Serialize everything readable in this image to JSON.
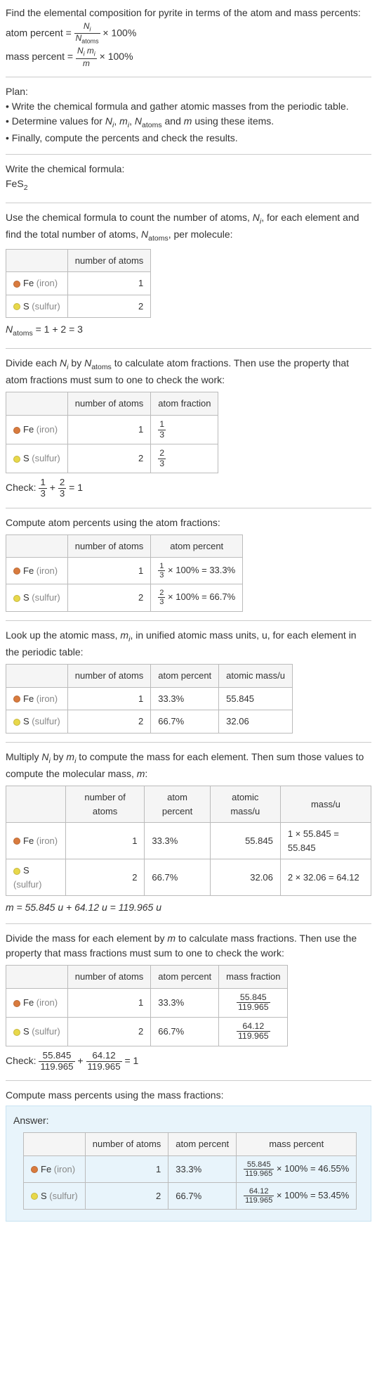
{
  "intro": {
    "line1": "Find the elemental composition for pyrite in terms of the atom and mass percents:",
    "atom_label": "atom percent = ",
    "atom_num": "N_i",
    "atom_den": "N_atoms",
    "mass_label": "mass percent = ",
    "mass_num": "N_i m_i",
    "mass_den": "m",
    "times100": " × 100%"
  },
  "plan": {
    "title": "Plan:",
    "b1": "• Write the chemical formula and gather atomic masses from the periodic table.",
    "b2_a": "• Determine values for ",
    "b2_b": " using these items.",
    "b3": "• Finally, compute the percents and check the results.",
    "vars": "N_i, m_i, N_atoms and m"
  },
  "step_formula": {
    "title": "Write the chemical formula:",
    "formula_a": "FeS",
    "formula_sub": "2"
  },
  "step_count": {
    "text_a": "Use the chemical formula to count the number of atoms, ",
    "text_b": ", for each element and find the total number of atoms, ",
    "text_c": ", per molecule:",
    "Ni": "N_i",
    "Natoms": "N_atoms",
    "header_atoms": "number of atoms",
    "fe_label": "Fe",
    "fe_muted": " (iron)",
    "s_label": "S",
    "s_muted": " (sulfur)",
    "fe_n": "1",
    "s_n": "2",
    "sum_a": "N",
    "sum_sub": "atoms",
    "sum_eq": " = 1 + 2 = 3"
  },
  "step_atomfrac": {
    "text_a": "Divide each ",
    "text_b": " by ",
    "text_c": " to calculate atom fractions. Then use the property that atom fractions must sum to one to check the work:",
    "header_frac": "atom fraction",
    "fe_frac_n": "1",
    "fe_frac_d": "3",
    "s_frac_n": "2",
    "s_frac_d": "3",
    "check_a": "Check: ",
    "check_eq": " = 1"
  },
  "step_atompct": {
    "title": "Compute atom percents using the atom fractions:",
    "header_pct": "atom percent",
    "fe_eq_a": " × 100% = 33.3%",
    "s_eq_a": " × 100% = 66.7%"
  },
  "step_mass_lookup": {
    "text_a": "Look up the atomic mass, ",
    "mi": "m_i",
    "text_b": ", in unified atomic mass units, u, for each element in the periodic table:",
    "header_massu": "atomic mass/u",
    "fe_pct": "33.3%",
    "s_pct": "66.7%",
    "fe_m": "55.845",
    "s_m": "32.06"
  },
  "step_mass_mult": {
    "text_a": "Multiply ",
    "text_b": " by ",
    "text_c": " to compute the mass for each element. Then sum those values to compute the molecular mass, ",
    "m": "m",
    "text_d": ":",
    "header_mu": "mass/u",
    "fe_mu": "1 × 55.845 = 55.845",
    "s_mu": "2 × 32.06 = 64.12",
    "sum": "m = 55.845 u + 64.12 u = 119.965 u"
  },
  "step_massfrac": {
    "text": "Divide the mass for each element by m to calculate mass fractions. Then use the property that mass fractions must sum to one to check the work:",
    "header_mfrac": "mass fraction",
    "fe_num": "55.845",
    "den": "119.965",
    "s_num": "64.12",
    "check_a": "Check: ",
    "check_eq": " = 1"
  },
  "step_masspct": {
    "title": "Compute mass percents using the mass fractions:"
  },
  "answer": {
    "label": "Answer:",
    "header_mpct": "mass percent",
    "fe_eq": " × 100% = 46.55%",
    "s_eq": " × 100% = 53.45%"
  },
  "colors": {
    "fe": "#d97b3e",
    "s": "#e8d84a"
  }
}
